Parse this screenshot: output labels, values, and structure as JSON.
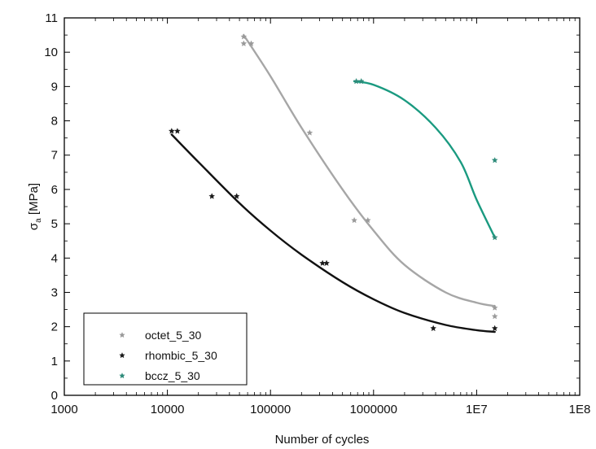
{
  "chart_data": {
    "type": "scatter",
    "xlabel": "Number of cycles",
    "ylabel": "σ",
    "ylabel_sub": "a",
    "ylabel_unit": " [MPa]",
    "xscale": "log",
    "xlim": [
      1000,
      100000000
    ],
    "ylim": [
      0,
      11
    ],
    "xticks": [
      1000,
      10000,
      100000,
      1000000,
      10000000,
      100000000
    ],
    "xtick_labels": [
      "1000",
      "10000",
      "100000",
      "1000000",
      "1E7",
      "1E8"
    ],
    "yticks": [
      0,
      1,
      2,
      3,
      4,
      5,
      6,
      7,
      8,
      9,
      10,
      11
    ],
    "ytick_labels": [
      "0",
      "1",
      "2",
      "3",
      "4",
      "5",
      "6",
      "7",
      "8",
      "9",
      "10",
      "11"
    ],
    "grid": false,
    "legend_position": "bottom-left",
    "series": [
      {
        "name": "octet_5_30",
        "marker_color": "#9a9a9a",
        "fit_color": "#a6a6a6",
        "points": [
          {
            "x": 55000,
            "y": 10.45
          },
          {
            "x": 55000,
            "y": 10.25
          },
          {
            "x": 65000,
            "y": 10.25
          },
          {
            "x": 240000,
            "y": 7.65
          },
          {
            "x": 650000,
            "y": 5.1
          },
          {
            "x": 880000,
            "y": 5.1
          },
          {
            "x": 15000000,
            "y": 2.55
          },
          {
            "x": 15000000,
            "y": 2.3
          }
        ],
        "fit": [
          {
            "x": 55000,
            "y": 10.5
          },
          {
            "x": 100000,
            "y": 9.3
          },
          {
            "x": 200000,
            "y": 7.8
          },
          {
            "x": 500000,
            "y": 6.0
          },
          {
            "x": 1000000,
            "y": 4.8
          },
          {
            "x": 2000000,
            "y": 3.8
          },
          {
            "x": 5000000,
            "y": 3.0
          },
          {
            "x": 10000000,
            "y": 2.7
          },
          {
            "x": 15000000,
            "y": 2.6
          }
        ]
      },
      {
        "name": "rhombic_5_30",
        "marker_color": "#1a1a1a",
        "fit_color": "#111111",
        "points": [
          {
            "x": 11000,
            "y": 7.7
          },
          {
            "x": 12500,
            "y": 7.7
          },
          {
            "x": 27000,
            "y": 5.8
          },
          {
            "x": 47000,
            "y": 5.8
          },
          {
            "x": 320000,
            "y": 3.85
          },
          {
            "x": 350000,
            "y": 3.85
          },
          {
            "x": 3800000,
            "y": 1.95
          },
          {
            "x": 15000000,
            "y": 1.95
          }
        ],
        "fit": [
          {
            "x": 11000,
            "y": 7.6
          },
          {
            "x": 20000,
            "y": 6.8
          },
          {
            "x": 50000,
            "y": 5.6
          },
          {
            "x": 100000,
            "y": 4.8
          },
          {
            "x": 200000,
            "y": 4.1
          },
          {
            "x": 500000,
            "y": 3.3
          },
          {
            "x": 1000000,
            "y": 2.8
          },
          {
            "x": 2000000,
            "y": 2.4
          },
          {
            "x": 5000000,
            "y": 2.05
          },
          {
            "x": 10000000,
            "y": 1.9
          },
          {
            "x": 15000000,
            "y": 1.85
          }
        ]
      },
      {
        "name": "bccz_5_30",
        "marker_color": "#2e8b7a",
        "fit_color": "#1a9a80",
        "points": [
          {
            "x": 680000,
            "y": 9.15
          },
          {
            "x": 760000,
            "y": 9.15
          },
          {
            "x": 15000000,
            "y": 6.85
          },
          {
            "x": 15000000,
            "y": 4.6
          }
        ],
        "fit": [
          {
            "x": 650000,
            "y": 9.15
          },
          {
            "x": 1000000,
            "y": 9.05
          },
          {
            "x": 2000000,
            "y": 8.6
          },
          {
            "x": 4000000,
            "y": 7.8
          },
          {
            "x": 7000000,
            "y": 6.8
          },
          {
            "x": 10000000,
            "y": 5.7
          },
          {
            "x": 15000000,
            "y": 4.6
          }
        ]
      }
    ]
  }
}
